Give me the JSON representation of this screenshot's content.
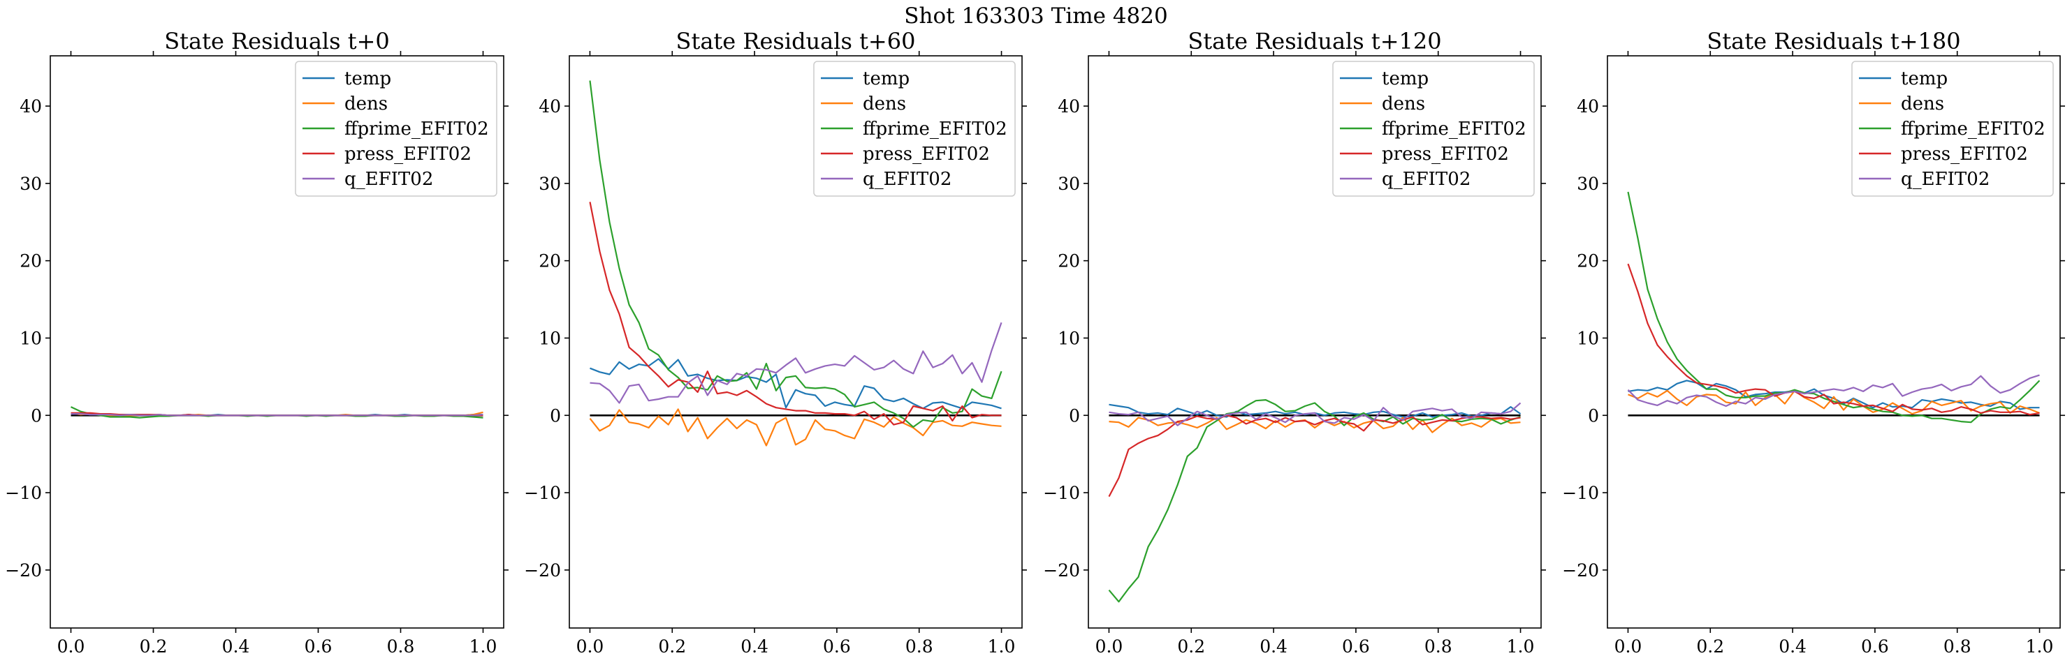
{
  "figure": {
    "suptitle": "Shot 163303   Time 4820"
  },
  "chart_data": [
    {
      "type": "line",
      "title": "State Residuals t+0",
      "xlabel": "",
      "ylabel": "",
      "xlim": [
        -0.05,
        1.05
      ],
      "ylim": [
        -27.5,
        46.5
      ],
      "xticks": [
        0.0,
        0.2,
        0.4,
        0.6,
        0.8,
        1.0
      ],
      "yticks": [
        -20,
        -10,
        0,
        10,
        20,
        30,
        40
      ],
      "legend_position": "top-right",
      "zero_line": true,
      "series": [
        {
          "name": "temp",
          "values": [
            0.2,
            0.2,
            0.1,
            0.1,
            0.0,
            0.1,
            0.1,
            0.1,
            0.1,
            0.0,
            0.0,
            0.0,
            0.1,
            0.0,
            0.0,
            0.1,
            0.0,
            0.0,
            0.0,
            0.0,
            0.0,
            0.0,
            0.0,
            0.0,
            0.0,
            0.0,
            0.0,
            0.0,
            0.0,
            0.0,
            0.0,
            0.1,
            0.0,
            0.0,
            0.1,
            0.0,
            0.0,
            0.0,
            0.0,
            0.0,
            0.0,
            0.1,
            0.1
          ]
        },
        {
          "name": "dens",
          "values": [
            0.3,
            0.1,
            0.2,
            0.1,
            0.0,
            0.0,
            0.0,
            0.0,
            0.0,
            0.1,
            0.0,
            0.0,
            0.0,
            0.1,
            0.0,
            0.0,
            0.0,
            0.0,
            0.0,
            0.0,
            0.0,
            0.0,
            0.0,
            0.0,
            0.0,
            0.0,
            0.0,
            0.0,
            0.1,
            0.0,
            0.0,
            0.0,
            0.0,
            0.0,
            0.0,
            0.0,
            0.0,
            0.0,
            0.0,
            0.0,
            0.0,
            0.1,
            0.4
          ]
        },
        {
          "name": "ffprime_EFIT02",
          "values": [
            1.1,
            0.5,
            0.2,
            0.0,
            -0.2,
            -0.2,
            -0.2,
            -0.3,
            -0.2,
            -0.1,
            -0.1,
            0.0,
            0.0,
            0.0,
            -0.1,
            0.0,
            0.0,
            0.0,
            -0.1,
            0.0,
            -0.1,
            0.0,
            0.0,
            0.0,
            -0.1,
            0.0,
            -0.1,
            0.0,
            0.0,
            -0.1,
            -0.1,
            0.0,
            0.0,
            -0.1,
            -0.1,
            0.0,
            -0.1,
            -0.1,
            0.0,
            -0.1,
            -0.1,
            -0.2,
            -0.3
          ]
        },
        {
          "name": "press_EFIT02",
          "values": [
            0.3,
            0.3,
            0.3,
            0.2,
            0.2,
            0.1,
            0.1,
            0.1,
            0.1,
            0.1,
            0.0,
            0.0,
            0.1,
            0.0,
            0.0,
            0.0,
            0.0,
            0.0,
            0.0,
            0.0,
            0.0,
            0.0,
            0.0,
            0.0,
            0.0,
            0.0,
            0.0,
            0.0,
            0.0,
            0.0,
            0.0,
            0.0,
            0.0,
            0.0,
            0.0,
            0.0,
            0.0,
            0.0,
            0.0,
            0.0,
            0.0,
            0.0,
            0.0
          ]
        },
        {
          "name": "q_EFIT02",
          "values": [
            0.2,
            0.2,
            0.1,
            0.1,
            0.1,
            0.0,
            0.1,
            0.0,
            0.0,
            0.1,
            0.0,
            0.0,
            0.0,
            0.0,
            0.0,
            0.0,
            0.0,
            0.0,
            0.0,
            0.0,
            0.0,
            0.0,
            0.0,
            0.0,
            0.0,
            0.0,
            0.0,
            0.0,
            0.0,
            0.0,
            0.0,
            0.0,
            0.0,
            0.0,
            0.0,
            0.0,
            0.0,
            0.0,
            0.0,
            0.0,
            0.0,
            0.0,
            0.1
          ]
        }
      ]
    },
    {
      "type": "line",
      "title": "State Residuals t+60",
      "xlabel": "",
      "ylabel": "",
      "xlim": [
        -0.05,
        1.05
      ],
      "ylim": [
        -27.5,
        46.5
      ],
      "xticks": [
        0.0,
        0.2,
        0.4,
        0.6,
        0.8,
        1.0
      ],
      "yticks": [
        -20,
        -10,
        0,
        10,
        20,
        30,
        40
      ],
      "legend_position": "top-right",
      "zero_line": true,
      "series": [
        {
          "name": "temp",
          "values": [
            6.1,
            5.6,
            5.3,
            6.9,
            6.0,
            6.6,
            6.4,
            7.3,
            6.0,
            7.2,
            5.1,
            5.3,
            4.8,
            4.5,
            4.6,
            4.5,
            5.0,
            4.8,
            4.3,
            5.3,
            1.0,
            3.3,
            2.8,
            2.6,
            1.2,
            1.7,
            1.4,
            1.2,
            3.8,
            3.5,
            2.1,
            1.8,
            2.2,
            1.5,
            0.9,
            1.6,
            1.7,
            1.3,
            0.9,
            1.7,
            1.5,
            1.3,
            0.9
          ]
        },
        {
          "name": "dens",
          "values": [
            -0.4,
            -2.0,
            -1.3,
            0.7,
            -0.9,
            -1.1,
            -1.6,
            -0.1,
            -1.2,
            0.8,
            -2.1,
            -0.3,
            -3.0,
            -1.6,
            -0.4,
            -1.7,
            -0.6,
            -1.2,
            -3.9,
            -1.0,
            -0.3,
            -3.8,
            -3.1,
            -0.6,
            -1.8,
            -2.0,
            -2.6,
            -3.0,
            -0.5,
            -0.9,
            -1.5,
            -0.2,
            -1.0,
            -1.6,
            -2.6,
            -0.9,
            -0.7,
            -1.3,
            -1.4,
            -0.9,
            -1.1,
            -1.3,
            -1.4
          ]
        },
        {
          "name": "ffprime_EFIT02",
          "values": [
            43.3,
            33.0,
            25.0,
            19.0,
            14.3,
            12.0,
            8.6,
            7.8,
            5.9,
            4.9,
            3.5,
            3.6,
            3.3,
            5.1,
            4.4,
            4.5,
            5.5,
            3.4,
            6.7,
            3.2,
            4.9,
            5.1,
            3.6,
            3.5,
            3.6,
            3.4,
            2.7,
            1.1,
            1.4,
            1.7,
            0.8,
            0.3,
            -0.4,
            -1.5,
            -0.6,
            -0.8,
            1.0,
            0.3,
            0.5,
            3.4,
            2.5,
            2.2,
            5.7
          ]
        },
        {
          "name": "press_EFIT02",
          "values": [
            27.6,
            21.2,
            16.2,
            13.1,
            8.8,
            7.7,
            6.3,
            5.1,
            3.7,
            4.6,
            4.3,
            3.0,
            5.7,
            2.8,
            3.0,
            2.6,
            3.2,
            2.4,
            1.5,
            1.0,
            0.8,
            0.6,
            0.6,
            0.3,
            0.3,
            0.2,
            0.2,
            0.0,
            0.5,
            -0.5,
            0.2,
            -1.2,
            -0.9,
            1.2,
            0.9,
            0.6,
            1.2,
            -0.7,
            1.2,
            -0.3,
            0.1,
            0.0,
            0.0
          ]
        },
        {
          "name": "q_EFIT02",
          "values": [
            4.2,
            4.1,
            3.2,
            1.6,
            3.8,
            4.0,
            1.9,
            2.1,
            2.4,
            2.4,
            4.2,
            5.1,
            2.6,
            4.5,
            4.0,
            5.4,
            5.1,
            6.0,
            5.9,
            5.5,
            6.5,
            7.4,
            5.5,
            6.0,
            6.4,
            6.6,
            6.4,
            7.7,
            6.8,
            5.9,
            6.2,
            7.1,
            6.0,
            5.4,
            8.3,
            6.2,
            6.7,
            7.8,
            5.4,
            6.8,
            4.3,
            8.4,
            12.0
          ]
        }
      ]
    },
    {
      "type": "line",
      "title": "State Residuals t+120",
      "xlabel": "",
      "ylabel": "",
      "xlim": [
        -0.05,
        1.05
      ],
      "ylim": [
        -27.5,
        46.5
      ],
      "xticks": [
        0.0,
        0.2,
        0.4,
        0.6,
        0.8,
        1.0
      ],
      "yticks": [
        -20,
        -10,
        0,
        10,
        20,
        30,
        40
      ],
      "legend_position": "top-right",
      "zero_line": true,
      "series": [
        {
          "name": "temp",
          "values": [
            1.4,
            1.2,
            1.0,
            0.4,
            0.2,
            0.3,
            0.1,
            0.9,
            0.5,
            0.1,
            0.6,
            0.0,
            -0.2,
            0.5,
            0.1,
            0.2,
            0.3,
            0.5,
            0.2,
            0.4,
            0.1,
            0.3,
            0.0,
            0.3,
            0.4,
            0.2,
            0.1,
            0.4,
            0.5,
            0.1,
            -0.2,
            -0.1,
            0.3,
            -0.2,
            0.0,
            0.1,
            0.3,
            -0.1,
            0.0,
            0.3,
            0.2,
            1.1,
            0.2
          ]
        },
        {
          "name": "dens",
          "values": [
            -0.8,
            -0.9,
            -1.5,
            -0.3,
            -0.6,
            -1.3,
            -1.0,
            -0.9,
            -1.2,
            -1.6,
            -1.0,
            -0.3,
            -1.8,
            -1.2,
            -0.6,
            -1.0,
            -1.7,
            -0.7,
            -1.5,
            -0.8,
            -0.6,
            -1.6,
            -0.7,
            -1.3,
            -0.8,
            -1.6,
            -1.0,
            -0.7,
            -1.7,
            -1.4,
            -0.3,
            -1.8,
            -0.6,
            -2.2,
            -1.2,
            -0.4,
            -1.3,
            -1.0,
            -1.5,
            -0.6,
            -0.4,
            -1.0,
            -0.9
          ]
        },
        {
          "name": "ffprime_EFIT02",
          "values": [
            -22.6,
            -24.1,
            -22.4,
            -20.9,
            -17.0,
            -14.8,
            -12.2,
            -9.0,
            -5.3,
            -4.2,
            -1.5,
            -0.7,
            0.2,
            0.4,
            1.2,
            1.9,
            2.0,
            1.4,
            0.5,
            0.6,
            1.2,
            1.6,
            0.5,
            -0.1,
            -1.3,
            -0.2,
            0.3,
            -0.5,
            -0.8,
            -0.2,
            -1.1,
            -0.4,
            -0.6,
            -0.5,
            0.1,
            -0.7,
            -0.8,
            -0.5,
            -0.4,
            -0.5,
            -1.1,
            -0.6,
            -0.2
          ]
        },
        {
          "name": "press_EFIT02",
          "values": [
            -10.5,
            -8.1,
            -4.4,
            -3.6,
            -3.0,
            -2.6,
            -1.8,
            -0.8,
            -0.6,
            -0.1,
            -0.4,
            -0.5,
            0.0,
            -0.3,
            -1.1,
            -0.6,
            -0.4,
            -0.9,
            -0.3,
            -0.8,
            -0.7,
            -1.2,
            -0.7,
            -0.4,
            -0.9,
            -1.1,
            -2.0,
            -0.6,
            -0.7,
            -1.0,
            -0.6,
            -0.2,
            -1.2,
            -0.9,
            -0.6,
            -0.7,
            -0.4,
            -0.2,
            -0.2,
            -0.4,
            -0.3,
            -0.5,
            -0.3
          ]
        },
        {
          "name": "q_EFIT02",
          "values": [
            0.4,
            0.2,
            0.1,
            0.4,
            -0.7,
            -0.4,
            -0.1,
            -1.3,
            -0.4,
            0.5,
            0.0,
            -0.5,
            0.1,
            0.3,
            0.4,
            -0.5,
            0.2,
            -0.3,
            -0.9,
            0.0,
            0.2,
            0.3,
            -0.8,
            -1.0,
            -0.3,
            -0.5,
            0.1,
            -0.7,
            1.0,
            -0.1,
            -0.6,
            0.5,
            0.7,
            0.9,
            0.6,
            0.8,
            -0.2,
            -0.4,
            0.4,
            0.3,
            0.2,
            0.5,
            1.6
          ]
        }
      ]
    },
    {
      "type": "line",
      "title": "State Residuals t+180",
      "xlabel": "",
      "ylabel": "",
      "xlim": [
        -0.05,
        1.05
      ],
      "ylim": [
        -27.5,
        46.5
      ],
      "xticks": [
        0.0,
        0.2,
        0.4,
        0.6,
        0.8,
        1.0
      ],
      "yticks": [
        -20,
        -10,
        0,
        10,
        20,
        30,
        40
      ],
      "legend_position": "top-right",
      "zero_line": true,
      "series": [
        {
          "name": "temp",
          "values": [
            3.1,
            3.3,
            3.2,
            3.6,
            3.3,
            4.1,
            4.5,
            4.2,
            3.4,
            4.1,
            3.8,
            3.3,
            2.4,
            2.7,
            2.8,
            3.0,
            3.0,
            3.2,
            2.9,
            3.4,
            2.6,
            2.2,
            1.5,
            2.2,
            1.6,
            1.0,
            1.6,
            1.1,
            1.2,
            1.0,
            2.0,
            1.8,
            2.1,
            1.9,
            1.6,
            1.7,
            1.4,
            1.2,
            1.8,
            1.6,
            0.8,
            1.0,
            1.0
          ]
        },
        {
          "name": "dens",
          "values": [
            2.7,
            2.2,
            2.9,
            2.4,
            3.2,
            2.1,
            1.3,
            2.4,
            2.7,
            2.6,
            1.7,
            1.5,
            3.0,
            1.3,
            2.3,
            2.7,
            1.5,
            3.2,
            2.3,
            1.7,
            0.9,
            2.4,
            0.7,
            2.1,
            1.2,
            0.4,
            0.8,
            1.6,
            0.9,
            0.2,
            0.6,
            1.8,
            1.3,
            1.6,
            1.9,
            0.6,
            1.2,
            1.5,
            1.7,
            0.3,
            1.2,
            0.8,
            0.3
          ]
        },
        {
          "name": "ffprime_EFIT02",
          "values": [
            28.9,
            22.9,
            16.3,
            12.5,
            9.5,
            7.3,
            5.8,
            4.6,
            3.4,
            3.4,
            2.6,
            2.3,
            2.3,
            2.5,
            2.5,
            2.9,
            2.9,
            3.3,
            2.9,
            2.8,
            2.2,
            1.8,
            1.4,
            1.0,
            1.2,
            0.8,
            0.5,
            0.4,
            0.0,
            -0.1,
            0.0,
            -0.4,
            -0.4,
            -0.6,
            -0.8,
            -0.9,
            0.2,
            0.8,
            1.1,
            0.9,
            2.0,
            3.2,
            4.5
          ]
        },
        {
          "name": "press_EFIT02",
          "values": [
            19.6,
            16.0,
            11.9,
            9.1,
            7.6,
            6.3,
            5.1,
            4.2,
            4.0,
            3.8,
            3.5,
            2.9,
            3.2,
            3.4,
            3.3,
            2.5,
            2.9,
            3.1,
            2.4,
            2.2,
            2.7,
            1.5,
            1.7,
            1.5,
            1.2,
            1.3,
            0.9,
            0.5,
            1.4,
            0.8,
            0.7,
            0.9,
            0.4,
            0.6,
            1.1,
            0.8,
            0.3,
            0.6,
            0.4,
            0.4,
            0.5,
            0.1,
            0.3
          ]
        },
        {
          "name": "q_EFIT02",
          "values": [
            3.3,
            2.0,
            1.6,
            1.3,
            1.9,
            1.5,
            2.3,
            2.6,
            2.4,
            1.7,
            1.2,
            1.8,
            1.5,
            2.3,
            2.1,
            2.7,
            2.9,
            3.1,
            2.8,
            3.0,
            3.2,
            3.4,
            3.2,
            3.6,
            3.1,
            3.9,
            3.6,
            4.1,
            2.5,
            3.0,
            3.4,
            3.6,
            4.0,
            3.2,
            3.7,
            4.0,
            5.1,
            3.8,
            2.9,
            3.3,
            4.1,
            4.8,
            5.2
          ]
        }
      ]
    }
  ],
  "colors": {
    "temp": "#1f77b4",
    "dens": "#ff7f0e",
    "ffprime_EFIT02": "#2ca02c",
    "press_EFIT02": "#d62728",
    "q_EFIT02": "#9467bd",
    "zero_line": "#000000",
    "axes": "#000000",
    "legend_border": "#cccccc"
  }
}
